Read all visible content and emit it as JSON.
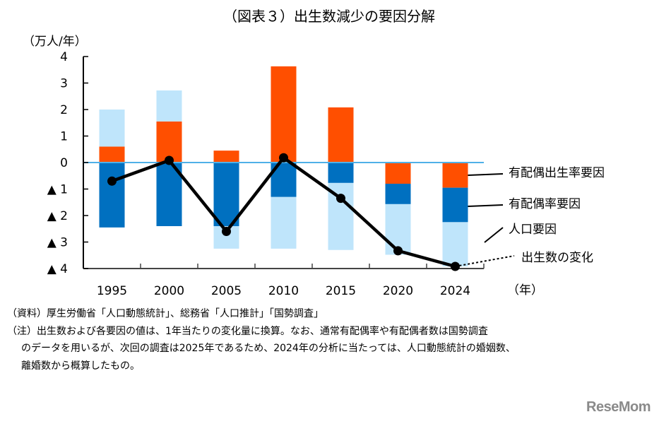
{
  "chart_data": {
    "type": "bar",
    "subtype": "stacked-bar-with-line",
    "title": "（図表３）出生数減少の要因分解",
    "ylabel": "（万人/年）",
    "xlabel": "（年）",
    "ylim": [
      -4,
      4
    ],
    "yticks": [
      4,
      3,
      2,
      1,
      0,
      -1,
      -2,
      -3,
      -4
    ],
    "ytick_labels": [
      "4",
      "3",
      "2",
      "1",
      "0",
      "▲ 1",
      "▲ 2",
      "▲ 3",
      "▲ 4"
    ],
    "grid": false,
    "categories": [
      "1995",
      "2000",
      "2005",
      "2010",
      "2015",
      "2020",
      "2024"
    ],
    "series": [
      {
        "name": "有配偶出生率要因",
        "type": "bar",
        "color": "#FF4F00",
        "values": [
          0.6,
          1.55,
          0.45,
          3.63,
          2.08,
          -0.8,
          -0.95
        ]
      },
      {
        "name": "有配偶率要因",
        "type": "bar",
        "color": "#0070C0",
        "values": [
          -2.45,
          -2.4,
          -2.4,
          -1.3,
          -0.77,
          -0.77,
          -1.3
        ]
      },
      {
        "name": "人口要因",
        "type": "bar",
        "color": "#BFE5FB",
        "values": [
          1.4,
          1.17,
          -0.85,
          -1.95,
          -2.53,
          -1.91,
          -1.67
        ]
      },
      {
        "name": "出生数の変化",
        "type": "line",
        "color": "#000000",
        "values": [
          -0.7,
          0.08,
          -2.6,
          0.18,
          -1.35,
          -3.33,
          -3.92
        ]
      }
    ],
    "legend_placement": "right (inline labels)",
    "zero_line_color": "#4FB0E8"
  },
  "notes": {
    "source": "（資料）厚生労働省「人口動態統計」、総務省「人口推計」「国勢調査」",
    "note_line1": "（注）出生数および各要因の値は、1年当たりの変化量に換算。なお、通常有配偶率や有配偶者数は国勢調査",
    "note_line2": "のデータを用いるが、次回の調査は2025年であるため、2024年の分析に当たっては、人口動態統計の婚姻数、",
    "note_line3": "離婚数から概算したもの。"
  },
  "logo": "ReseMom"
}
